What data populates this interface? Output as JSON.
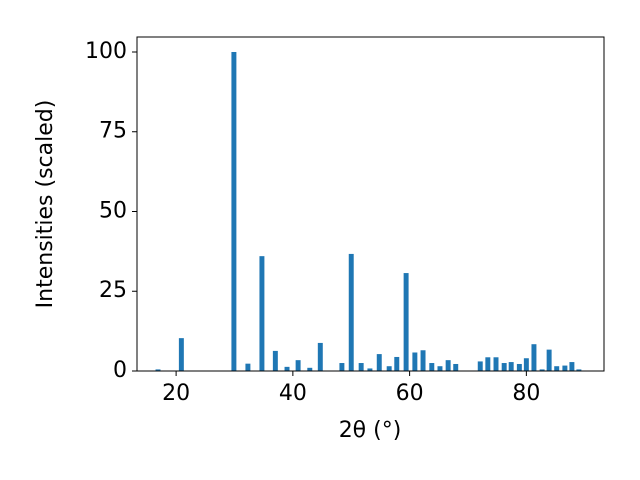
{
  "chart_data": {
    "type": "bar",
    "x_label": "2θ (°)",
    "y_label": "Intensities (scaled)",
    "x": [
      16.9,
      20.9,
      29.9,
      32.3,
      34.7,
      37.0,
      39.0,
      40.9,
      42.9,
      44.7,
      48.4,
      50.0,
      51.7,
      53.2,
      54.8,
      56.5,
      57.8,
      59.4,
      60.9,
      62.3,
      63.8,
      65.2,
      66.6,
      67.9,
      72.1,
      73.4,
      74.8,
      76.2,
      77.4,
      78.8,
      80.0,
      81.3,
      82.7,
      83.9,
      85.2,
      86.6,
      87.8,
      89.0
    ],
    "values": [
      0.5,
      10.3,
      100,
      2.3,
      36,
      6.3,
      1.3,
      3.4,
      1,
      8.8,
      2.5,
      36.7,
      2.5,
      0.8,
      5.3,
      1.5,
      4.4,
      30.7,
      5.8,
      6.5,
      2.5,
      1.5,
      3.4,
      2.2,
      3,
      4.3,
      4.3,
      2.5,
      2.8,
      2.2,
      4,
      8.4,
      0.5,
      6.7,
      1.5,
      1.7,
      2.8,
      0.5
    ],
    "color": "#1f77b4",
    "xlim": [
      13.3,
      93.3
    ],
    "xticks": [
      20,
      40,
      60,
      80
    ],
    "ylim": [
      0,
      104.7
    ],
    "yticks": [
      0,
      25,
      50,
      75,
      100
    ],
    "grid": false
  }
}
